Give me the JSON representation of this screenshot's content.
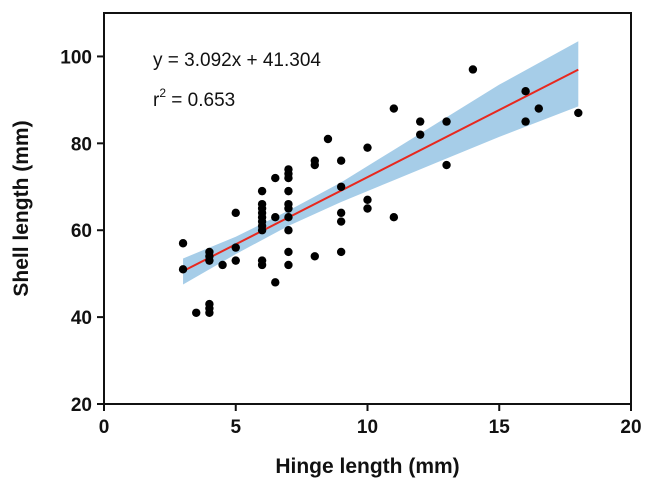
{
  "chart_data": {
    "type": "scatter",
    "xlabel": "Hinge length (mm)",
    "ylabel": "Shell length (mm)",
    "xlim": [
      0,
      20
    ],
    "ylim": [
      20,
      110
    ],
    "xticks": [
      0,
      5,
      10,
      15,
      20
    ],
    "yticks": [
      20,
      40,
      60,
      80,
      100
    ],
    "grid": false,
    "colors": {
      "points": "#000000",
      "fit_line": "#e8281e",
      "confidence_band": "#a6cde8"
    },
    "annotations": {
      "equation": "y = 3.092x + 41.304",
      "r2_prefix": "r",
      "r2_sup": "2",
      "r2_value": " = 0.653"
    },
    "fit": {
      "slope": 3.092,
      "intercept": 41.304,
      "x_range": [
        3,
        18
      ],
      "band": [
        {
          "x": 3,
          "lower": 47.5,
          "upper": 53.5
        },
        {
          "x": 5,
          "lower": 54.5,
          "upper": 58.5
        },
        {
          "x": 7,
          "lower": 61.0,
          "upper": 64.5
        },
        {
          "x": 9,
          "lower": 66.5,
          "upper": 71.0
        },
        {
          "x": 11,
          "lower": 71.5,
          "upper": 78.5
        },
        {
          "x": 13,
          "lower": 76.5,
          "upper": 86.0
        },
        {
          "x": 15,
          "lower": 81.5,
          "upper": 93.5
        },
        {
          "x": 18,
          "lower": 88.5,
          "upper": 103.5
        }
      ]
    },
    "points": [
      [
        3,
        57
      ],
      [
        3,
        51
      ],
      [
        3.5,
        41
      ],
      [
        4,
        55
      ],
      [
        4,
        54
      ],
      [
        4,
        53
      ],
      [
        4,
        43
      ],
      [
        4,
        42
      ],
      [
        4,
        41
      ],
      [
        4.5,
        52
      ],
      [
        5,
        64
      ],
      [
        5,
        56
      ],
      [
        5,
        53
      ],
      [
        6,
        69
      ],
      [
        6,
        66
      ],
      [
        6,
        65
      ],
      [
        6,
        64
      ],
      [
        6,
        63
      ],
      [
        6,
        62
      ],
      [
        6,
        61
      ],
      [
        6,
        60
      ],
      [
        6,
        53
      ],
      [
        6,
        52
      ],
      [
        6.5,
        72
      ],
      [
        6.5,
        63
      ],
      [
        6.5,
        48
      ],
      [
        7,
        74
      ],
      [
        7,
        73
      ],
      [
        7,
        72
      ],
      [
        7,
        69
      ],
      [
        7,
        66
      ],
      [
        7,
        65
      ],
      [
        7,
        63
      ],
      [
        7,
        60
      ],
      [
        7,
        55
      ],
      [
        7,
        52
      ],
      [
        8,
        76
      ],
      [
        8,
        75
      ],
      [
        8,
        54
      ],
      [
        8.5,
        81
      ],
      [
        9,
        76
      ],
      [
        9,
        70
      ],
      [
        9,
        64
      ],
      [
        9,
        62
      ],
      [
        9,
        55
      ],
      [
        10,
        79
      ],
      [
        10,
        67
      ],
      [
        10,
        65
      ],
      [
        11,
        88
      ],
      [
        11,
        63
      ],
      [
        12,
        85
      ],
      [
        12,
        82
      ],
      [
        13,
        85
      ],
      [
        13,
        75
      ],
      [
        14,
        97
      ],
      [
        16,
        92
      ],
      [
        16,
        85
      ],
      [
        16.5,
        88
      ],
      [
        18,
        87
      ]
    ]
  }
}
